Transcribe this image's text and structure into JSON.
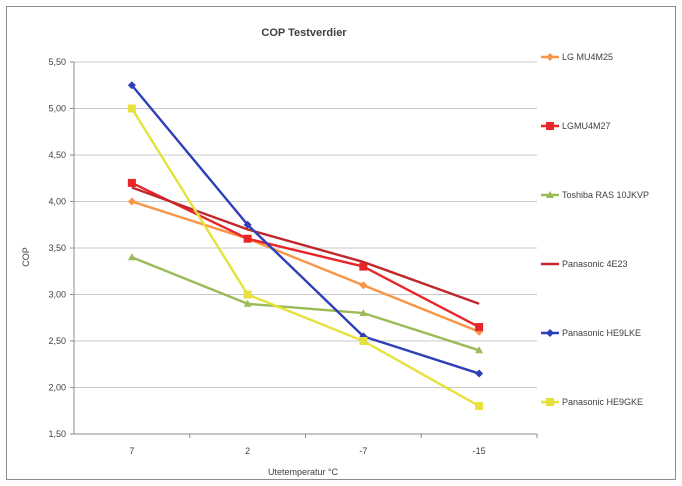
{
  "chart_data": {
    "type": "line",
    "title": "COP Testverdier",
    "xlabel": "Utetemperatur °C",
    "ylabel": "COP",
    "categories": [
      "7",
      "2",
      "-7",
      "-15"
    ],
    "ylim": [
      1.5,
      5.5
    ],
    "yticks": [
      "1,50",
      "2,00",
      "2,50",
      "3,00",
      "3,50",
      "4,00",
      "4,50",
      "5,00",
      "5,50"
    ],
    "ytick_values": [
      1.5,
      2.0,
      2.5,
      3.0,
      3.5,
      4.0,
      4.5,
      5.0,
      5.5
    ],
    "grid": true,
    "legend": "right",
    "series": [
      {
        "name": "LG MU4M25",
        "color": "#f79646",
        "marker": "diamond",
        "values": [
          4.0,
          3.6,
          3.1,
          2.6
        ]
      },
      {
        "name": "LGMU4M27",
        "color": "#e8262a",
        "marker": "square",
        "values": [
          4.2,
          3.6,
          3.3,
          2.65
        ]
      },
      {
        "name": "Toshiba RAS 10JKVP",
        "color": "#9bbb59",
        "marker": "triangle",
        "values": [
          3.4,
          2.9,
          2.8,
          2.4
        ]
      },
      {
        "name": "Panasonic 4E23",
        "color": "#c0282c",
        "marker": "none",
        "values": [
          4.15,
          3.7,
          3.35,
          2.9
        ]
      },
      {
        "name": "Panasonic HE9LKE",
        "color": "#2f3fb8",
        "marker": "diamond",
        "values": [
          5.25,
          3.75,
          2.55,
          2.15
        ]
      },
      {
        "name": "Panasonic HE9GKE",
        "color": "#e6e13c",
        "marker": "square",
        "values": [
          5.0,
          3.0,
          2.5,
          1.8
        ]
      }
    ]
  }
}
